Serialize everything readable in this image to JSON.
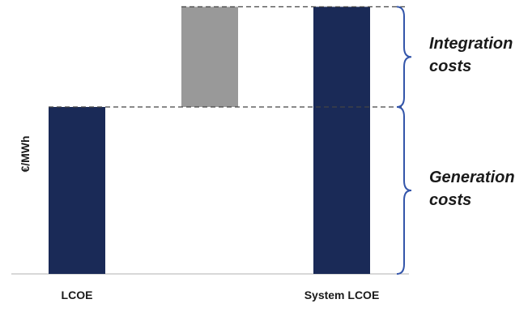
{
  "chart_data": {
    "type": "bar",
    "categories": [
      "LCOE",
      "",
      "System LCOE"
    ],
    "ylabel": "€/MWh",
    "y_ticks_shown": false,
    "grid": false,
    "values_units": "relative",
    "bars": [
      {
        "category": "LCOE",
        "base": 0,
        "value": 1.0,
        "color": "#1a2a57"
      },
      {
        "category": "",
        "base": 1.0,
        "value": 0.6,
        "color": "#999999"
      },
      {
        "category": "System LCOE",
        "base": 0,
        "value": 1.6,
        "color": "#1a2a57"
      }
    ],
    "reference_lines": [
      {
        "y": 1.0,
        "style": "dashed"
      },
      {
        "y": 1.6,
        "style": "dashed"
      }
    ],
    "annotations": [
      {
        "text_line1": "Integration",
        "text_line2": "costs",
        "from": 1.0,
        "to": 1.6,
        "brace_color": "#3355aa"
      },
      {
        "text_line1": "Generation",
        "text_line2": "costs",
        "from": 0,
        "to": 1.0,
        "brace_color": "#3355aa"
      }
    ]
  }
}
